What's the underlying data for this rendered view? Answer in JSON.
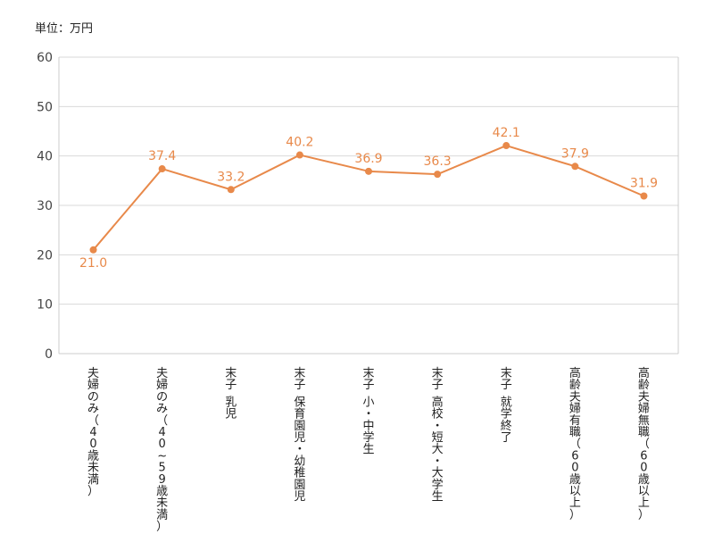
{
  "unit_label": "単位：万円",
  "colors": {
    "line": "#e8894a",
    "label": "#e8894a",
    "grid": "#d9d9d9",
    "axis": "#cccccc"
  },
  "chart_data": {
    "type": "line",
    "title": "",
    "xlabel": "",
    "ylabel": "",
    "ylim": [
      0,
      60
    ],
    "yticks": [
      0,
      10,
      20,
      30,
      40,
      50,
      60
    ],
    "grid": true,
    "legend": "none",
    "categories": [
      "夫婦のみ（40歳未満）",
      "夫婦のみ（40~59歳未満）",
      "末子 乳児",
      "末子 保育園児・幼稚園児",
      "末子 小・中学生",
      "末子 高校・短大・大学生",
      "末子 就学終了",
      "高齢夫婦有職（60歳以上）",
      "高齢夫婦無職（60歳以上）"
    ],
    "series": [
      {
        "values": [
          21.0,
          37.4,
          33.2,
          40.2,
          36.9,
          36.3,
          42.1,
          37.9,
          31.9
        ],
        "labels": [
          "21.0",
          "37.4",
          "33.2",
          "40.2",
          "36.9",
          "36.3",
          "42.1",
          "37.9",
          "31.9"
        ]
      }
    ]
  }
}
